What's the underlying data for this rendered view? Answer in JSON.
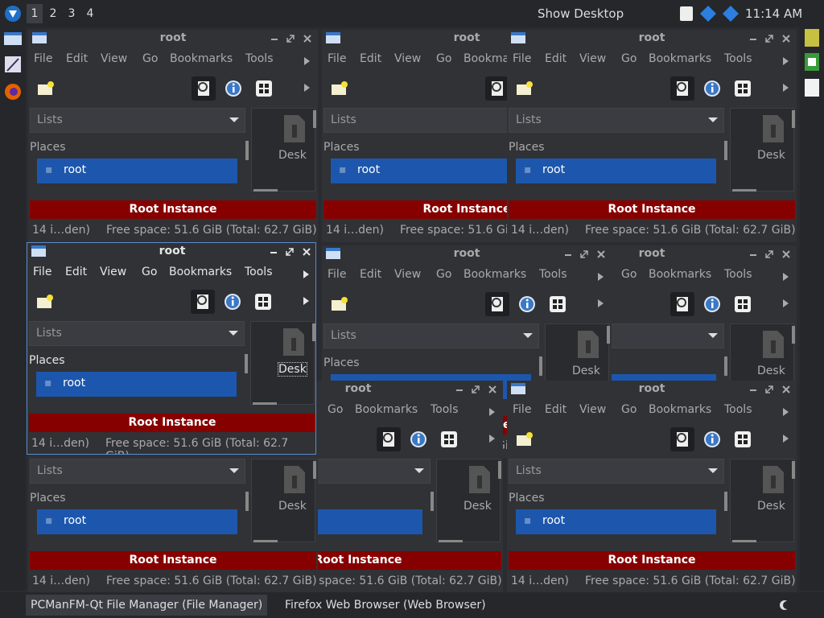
{
  "panel": {
    "workspaces": [
      "1",
      "2",
      "3",
      "4"
    ],
    "show_desktop": "Show Desktop",
    "clock": "11:14 AM"
  },
  "window": {
    "title": "root",
    "menu": [
      "File",
      "Edit",
      "View",
      "Go",
      "Bookmarks",
      "Tools"
    ],
    "side_pane": "Lists",
    "places": "Places",
    "place_item": "root",
    "folder_item": "Desk",
    "banner": "Root Instance",
    "status_items": "14 i…den)",
    "status_space": "Free space: 51.6 GiB (Total: 62.7 GiB)"
  },
  "taskbar": {
    "tasks": [
      "PCManFM-Qt File Manager (File Manager)",
      "Firefox Web Browser (Web Browser)"
    ]
  }
}
